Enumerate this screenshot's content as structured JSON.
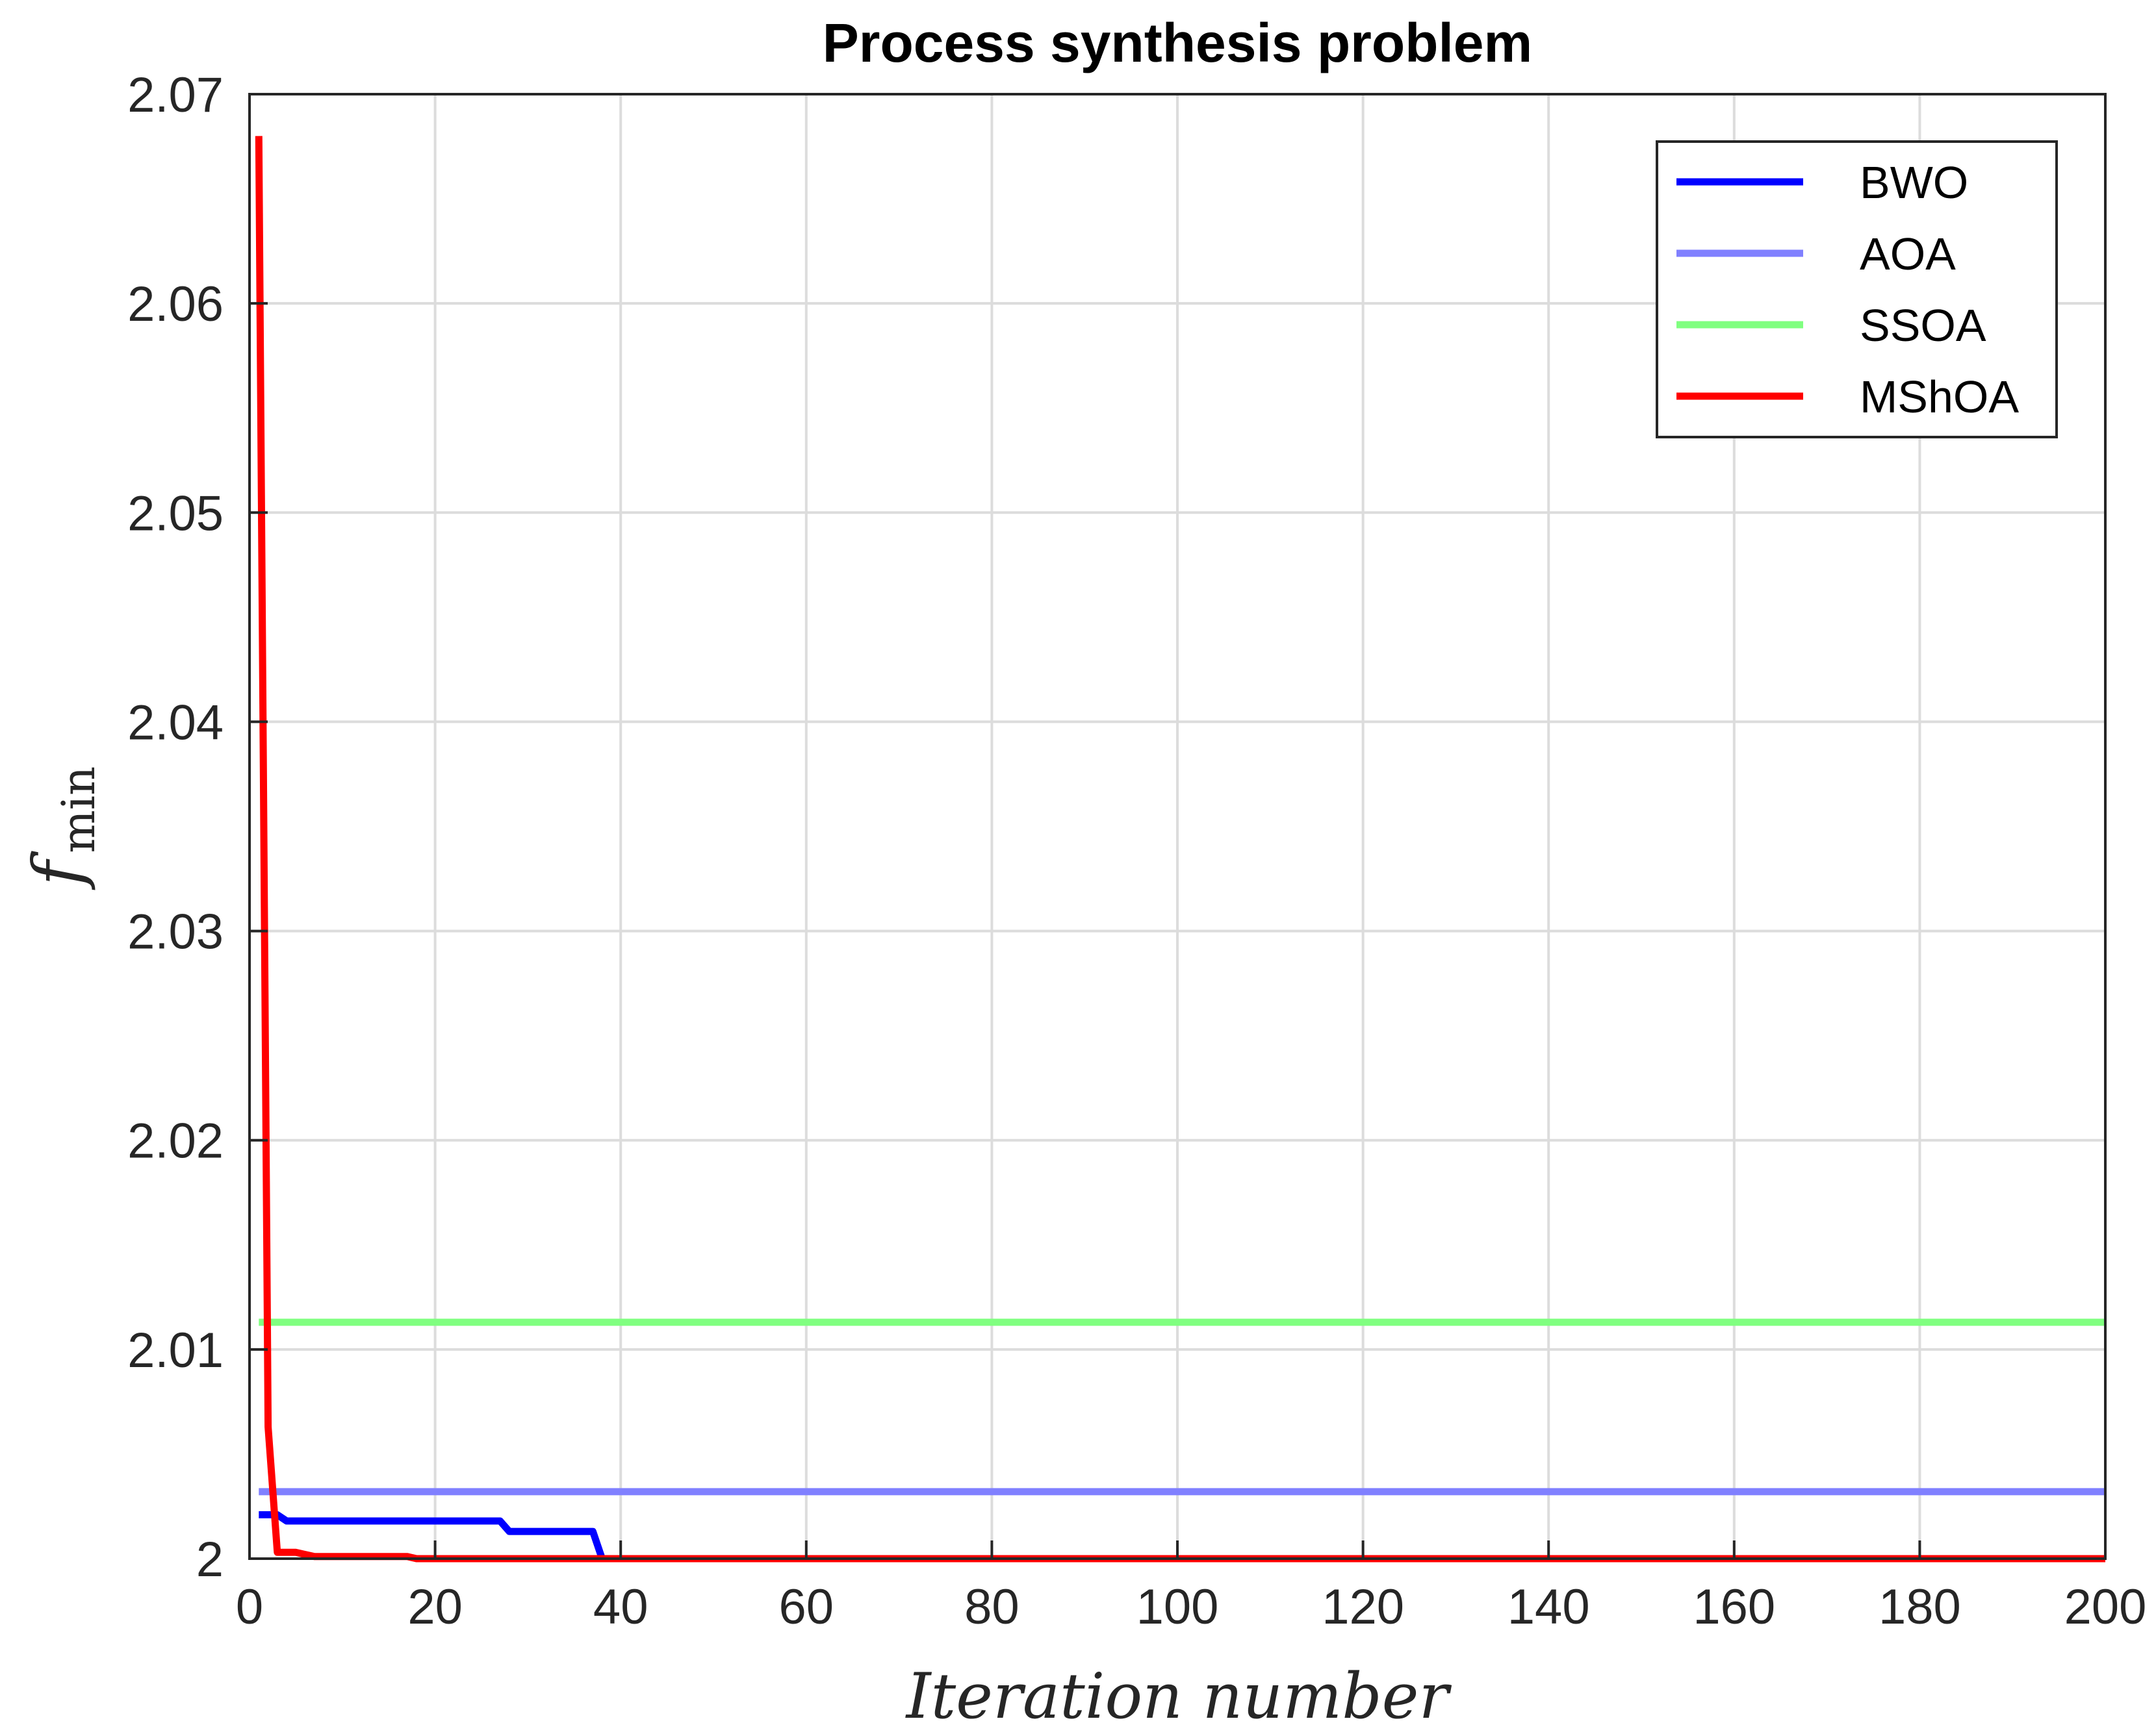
{
  "chart_data": {
    "type": "line",
    "title": "Process synthesis problem",
    "xlabel": "Iteration number",
    "ylabel": {
      "main": "f",
      "sub": "min"
    },
    "xlim": [
      0,
      200
    ],
    "ylim": [
      2,
      2.07
    ],
    "xticks": [
      0,
      20,
      40,
      60,
      80,
      100,
      120,
      140,
      160,
      180,
      200
    ],
    "xtick_labels": [
      "0",
      "20",
      "40",
      "60",
      "80",
      "100",
      "120",
      "140",
      "160",
      "180",
      "200"
    ],
    "yticks": [
      2,
      2.01,
      2.02,
      2.03,
      2.04,
      2.05,
      2.06,
      2.07
    ],
    "ytick_labels": [
      "2",
      "2.01",
      "2.02",
      "2.03",
      "2.04",
      "2.05",
      "2.06",
      "2.07"
    ],
    "grid": true,
    "legend_position": "top-right",
    "series": [
      {
        "name": "BWO",
        "color": "#0000ff",
        "x": [
          1,
          2,
          3,
          4,
          5,
          27,
          28,
          29,
          37,
          38,
          200
        ],
        "y": [
          2.0021,
          2.0021,
          2.0021,
          2.0018,
          2.0018,
          2.0018,
          2.0013,
          2.0013,
          2.0013,
          2.0,
          2.0
        ]
      },
      {
        "name": "AOA",
        "color": "#8080ff",
        "x": [
          1,
          200
        ],
        "y": [
          2.0032,
          2.0032
        ]
      },
      {
        "name": "SSOA",
        "color": "#80ff80",
        "x": [
          1,
          200
        ],
        "y": [
          2.0113,
          2.0113
        ]
      },
      {
        "name": "MShOA",
        "color": "#ff0000",
        "x": [
          1,
          2,
          3,
          4,
          5,
          6,
          7,
          8,
          17,
          18,
          200
        ],
        "y": [
          2.068,
          2.0063,
          2.0003,
          2.0003,
          2.0003,
          2.0002,
          2.0001,
          2.0001,
          2.0001,
          2.0,
          2.0
        ]
      }
    ]
  }
}
